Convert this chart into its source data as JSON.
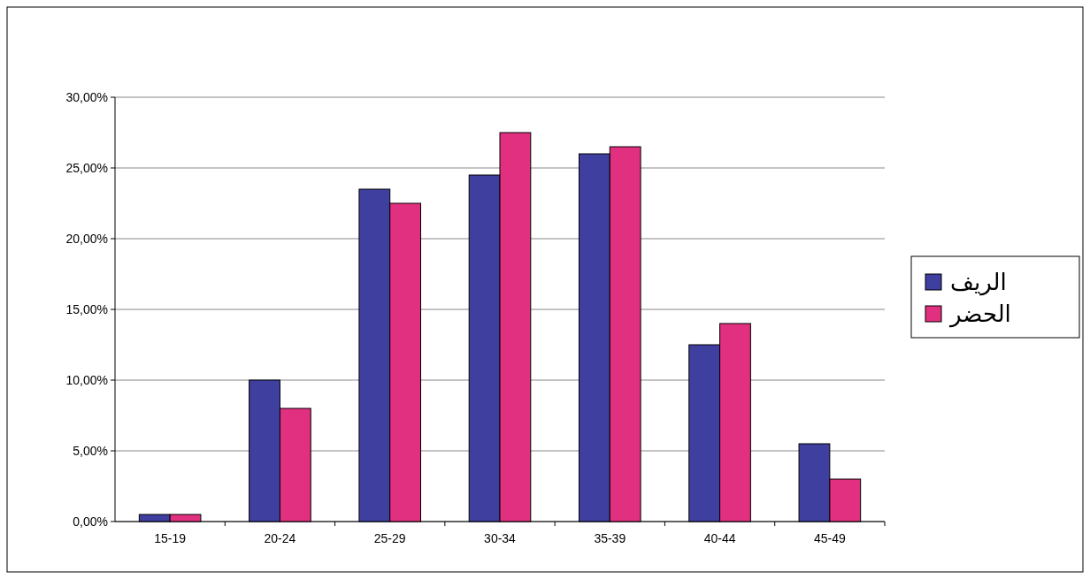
{
  "chart_data": {
    "type": "bar",
    "categories": [
      "15-19",
      "20-24",
      "25-29",
      "30-34",
      "35-39",
      "40-44",
      "45-49"
    ],
    "series": [
      {
        "name": "الريف",
        "color": "#3f3f9f",
        "values": [
          0.5,
          10,
          23.5,
          24.5,
          26,
          12.5,
          5.5
        ]
      },
      {
        "name": "الحضر",
        "color": "#e0307f",
        "values": [
          0.5,
          8,
          22.5,
          27.5,
          26.5,
          14,
          3
        ]
      }
    ],
    "ylim": [
      0,
      30
    ],
    "yticks": [
      {
        "value": 0,
        "label": "0,00%"
      },
      {
        "value": 5,
        "label": "5,00%"
      },
      {
        "value": 10,
        "label": "10,00%"
      },
      {
        "value": 15,
        "label": "15,00%"
      },
      {
        "value": 20,
        "label": "20,00%"
      },
      {
        "value": 25,
        "label": "25,00%"
      },
      {
        "value": 30,
        "label": "30,00%"
      }
    ],
    "grid": "y",
    "legend": "right"
  }
}
